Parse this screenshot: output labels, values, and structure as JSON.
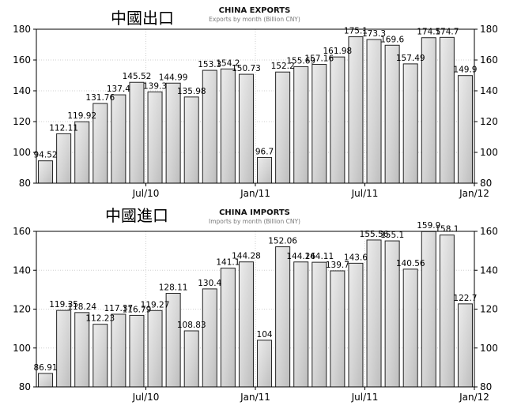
{
  "chart_data": [
    {
      "type": "bar",
      "title": "CHINA EXPORTS",
      "subtitle": "Exports by month (Billion CNY)",
      "chinese_title": "中國出口",
      "x_tick_labels": [
        "Jul/10",
        "Jan/11",
        "Jul/11",
        "Jan/12"
      ],
      "x_tick_after_index": [
        5,
        11,
        17,
        23
      ],
      "ylim": [
        80,
        180
      ],
      "yticks": [
        80,
        100,
        120,
        140,
        160,
        180
      ],
      "grid": true,
      "values": [
        94.52,
        112.11,
        119.92,
        131.76,
        137.4,
        145.52,
        139.3,
        144.99,
        135.98,
        153.3,
        154.2,
        150.73,
        96.7,
        152.2,
        155.69,
        157.16,
        161.98,
        175.1,
        173.3,
        169.6,
        157.49,
        174.5,
        174.7,
        149.9
      ],
      "labels": [
        "94.52",
        "112.11",
        "119.92",
        "131.76",
        "137.4",
        "145.52",
        "139.3",
        "144.99",
        "135.98",
        "153.3",
        "154.2",
        "150.73",
        "96.7",
        "152.2",
        "155.69",
        "157.16",
        "161.98",
        "175.1",
        "173.3",
        "169.6",
        "157.49",
        "174.5",
        "174.7",
        "149.9"
      ]
    },
    {
      "type": "bar",
      "title": "CHINA IMPORTS",
      "subtitle": "Imports by month (Billion CNY)",
      "chinese_title": "中國進口",
      "x_tick_labels": [
        "Jul/10",
        "Jan/11",
        "Jul/11",
        "Jan/12"
      ],
      "x_tick_after_index": [
        5,
        11,
        17,
        23
      ],
      "ylim": [
        80,
        160
      ],
      "yticks": [
        80,
        100,
        120,
        140,
        160
      ],
      "grid": true,
      "values": [
        86.91,
        119.35,
        118.24,
        112.23,
        117.37,
        116.79,
        119.27,
        128.11,
        108.83,
        130.4,
        141.1,
        144.28,
        104,
        152.06,
        144.26,
        144.11,
        139.7,
        143.6,
        155.56,
        155.1,
        140.56,
        159.9,
        158.1,
        122.7
      ],
      "labels": [
        "86.91",
        "119.35",
        "118.24",
        "112.23",
        "117.37",
        "116.79",
        "119.27",
        "128.11",
        "108.83",
        "130.4",
        "141.1",
        "144.28",
        "104",
        "152.06",
        "144.26",
        "144.11",
        "139.7",
        "143.6",
        "155.56",
        "155.1",
        "140.56",
        "159.9",
        "158.1",
        "122.7"
      ]
    }
  ]
}
